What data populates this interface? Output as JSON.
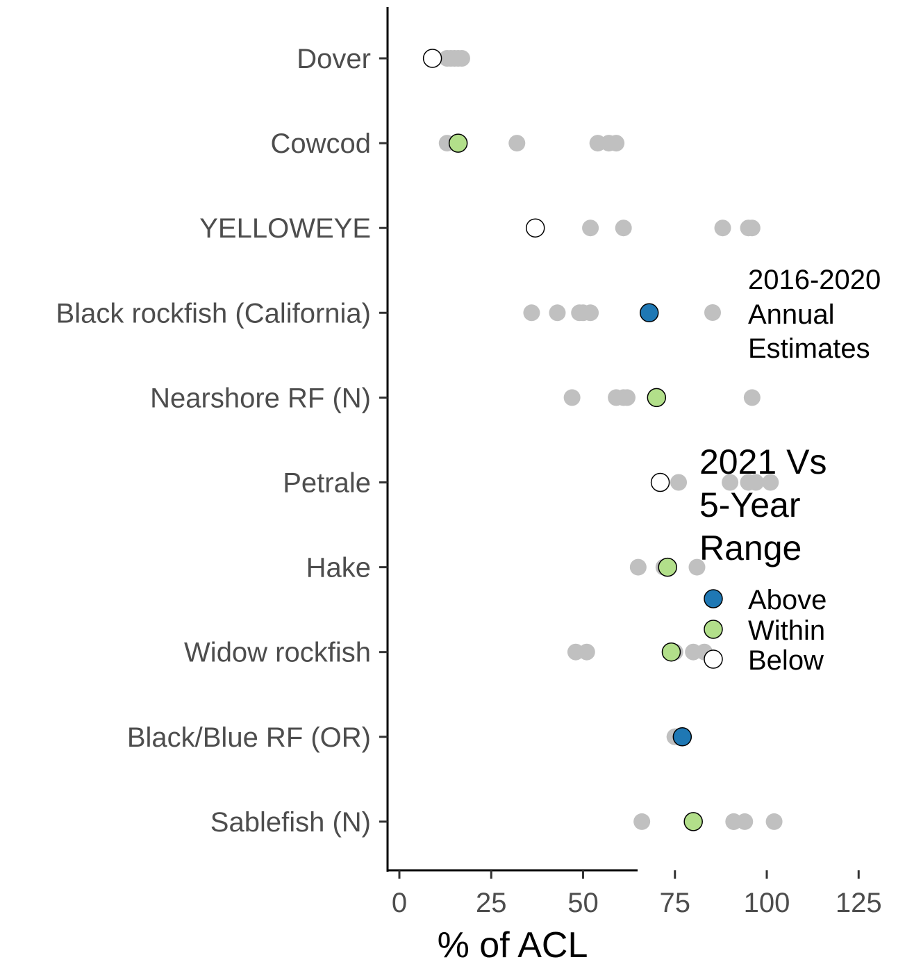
{
  "chart_data": {
    "type": "scatter",
    "xlabel": "% of ACL",
    "ylabel": "",
    "title": "",
    "xlim": [
      -6,
      130
    ],
    "xticks": [
      0,
      25,
      50,
      75,
      100,
      125
    ],
    "categories": [
      "Dover",
      "Cowcod",
      "YELLOWEYE",
      "Black rockfish (California)",
      "Nearshore RF (N)",
      "Petrale",
      "Hake",
      "Widow rockfish",
      "Black/Blue RF (OR)",
      "Sablefish (N)"
    ],
    "series": [
      {
        "name": "2016-2020 Annual Estimates",
        "color": "#c0c0c0",
        "points": [
          {
            "category": "Dover",
            "x": 14
          },
          {
            "category": "Dover",
            "x": 16
          },
          {
            "category": "Dover",
            "x": 17
          },
          {
            "category": "Dover",
            "x": 15
          },
          {
            "category": "Dover",
            "x": 13
          },
          {
            "category": "Cowcod",
            "x": 13
          },
          {
            "category": "Cowcod",
            "x": 32
          },
          {
            "category": "Cowcod",
            "x": 54
          },
          {
            "category": "Cowcod",
            "x": 57
          },
          {
            "category": "Cowcod",
            "x": 59
          },
          {
            "category": "YELLOWEYE",
            "x": 52
          },
          {
            "category": "YELLOWEYE",
            "x": 61
          },
          {
            "category": "YELLOWEYE",
            "x": 88
          },
          {
            "category": "YELLOWEYE",
            "x": 96
          },
          {
            "category": "YELLOWEYE",
            "x": 95
          },
          {
            "category": "Black rockfish (California)",
            "x": 36
          },
          {
            "category": "Black rockfish (California)",
            "x": 43
          },
          {
            "category": "Black rockfish (California)",
            "x": 49
          },
          {
            "category": "Black rockfish (California)",
            "x": 52
          },
          {
            "category": "Black rockfish (California)",
            "x": 50
          },
          {
            "category": "Nearshore RF (N)",
            "x": 47
          },
          {
            "category": "Nearshore RF (N)",
            "x": 59
          },
          {
            "category": "Nearshore RF (N)",
            "x": 61
          },
          {
            "category": "Nearshore RF (N)",
            "x": 96
          },
          {
            "category": "Nearshore RF (N)",
            "x": 62
          },
          {
            "category": "Petrale",
            "x": 76
          },
          {
            "category": "Petrale",
            "x": 90
          },
          {
            "category": "Petrale",
            "x": 95
          },
          {
            "category": "Petrale",
            "x": 97
          },
          {
            "category": "Petrale",
            "x": 101
          },
          {
            "category": "Hake",
            "x": 65
          },
          {
            "category": "Hake",
            "x": 72
          },
          {
            "category": "Hake",
            "x": 73
          },
          {
            "category": "Hake",
            "x": 81
          },
          {
            "category": "Hake",
            "x": 72
          },
          {
            "category": "Widow rockfish",
            "x": 48
          },
          {
            "category": "Widow rockfish",
            "x": 51
          },
          {
            "category": "Widow rockfish",
            "x": 75
          },
          {
            "category": "Widow rockfish",
            "x": 80
          },
          {
            "category": "Widow rockfish",
            "x": 83
          },
          {
            "category": "Black/Blue RF (OR)",
            "x": 75
          },
          {
            "category": "Black/Blue RF (OR)",
            "x": 76
          },
          {
            "category": "Black/Blue RF (OR)",
            "x": 77
          },
          {
            "category": "Black/Blue RF (OR)",
            "x": 75
          },
          {
            "category": "Black/Blue RF (OR)",
            "x": 76
          },
          {
            "category": "Sablefish (N)",
            "x": 66
          },
          {
            "category": "Sablefish (N)",
            "x": 91
          },
          {
            "category": "Sablefish (N)",
            "x": 91
          },
          {
            "category": "Sablefish (N)",
            "x": 94
          },
          {
            "category": "Sablefish (N)",
            "x": 102
          }
        ]
      },
      {
        "name": "2021 Vs 5-Year Range",
        "points": [
          {
            "category": "Dover",
            "x": 9,
            "status": "Below"
          },
          {
            "category": "Cowcod",
            "x": 16,
            "status": "Within"
          },
          {
            "category": "YELLOWEYE",
            "x": 37,
            "status": "Below"
          },
          {
            "category": "Black rockfish (California)",
            "x": 68,
            "status": "Above"
          },
          {
            "category": "Nearshore RF (N)",
            "x": 70,
            "status": "Within"
          },
          {
            "category": "Petrale",
            "x": 71,
            "status": "Below"
          },
          {
            "category": "Hake",
            "x": 73,
            "status": "Within"
          },
          {
            "category": "Widow rockfish",
            "x": 74,
            "status": "Within"
          },
          {
            "category": "Black/Blue RF (OR)",
            "x": 77,
            "status": "Above"
          },
          {
            "category": "Sablefish (N)",
            "x": 80,
            "status": "Within"
          }
        ]
      }
    ],
    "status_colors": {
      "Above": "#1f78b4",
      "Within": "#b2df8a",
      "Below": "#ffffff"
    },
    "grid": false,
    "legend_position": "right"
  },
  "legend": {
    "annual": {
      "lines": [
        "2016-2020",
        "Annual",
        "Estimates"
      ]
    },
    "status": {
      "title_lines": [
        "2021 Vs",
        "5-Year",
        "Range"
      ],
      "items": [
        {
          "label": "Above",
          "color": "#1f78b4"
        },
        {
          "label": "Within",
          "color": "#b2df8a"
        },
        {
          "label": "Below",
          "color": "#ffffff"
        }
      ]
    }
  }
}
